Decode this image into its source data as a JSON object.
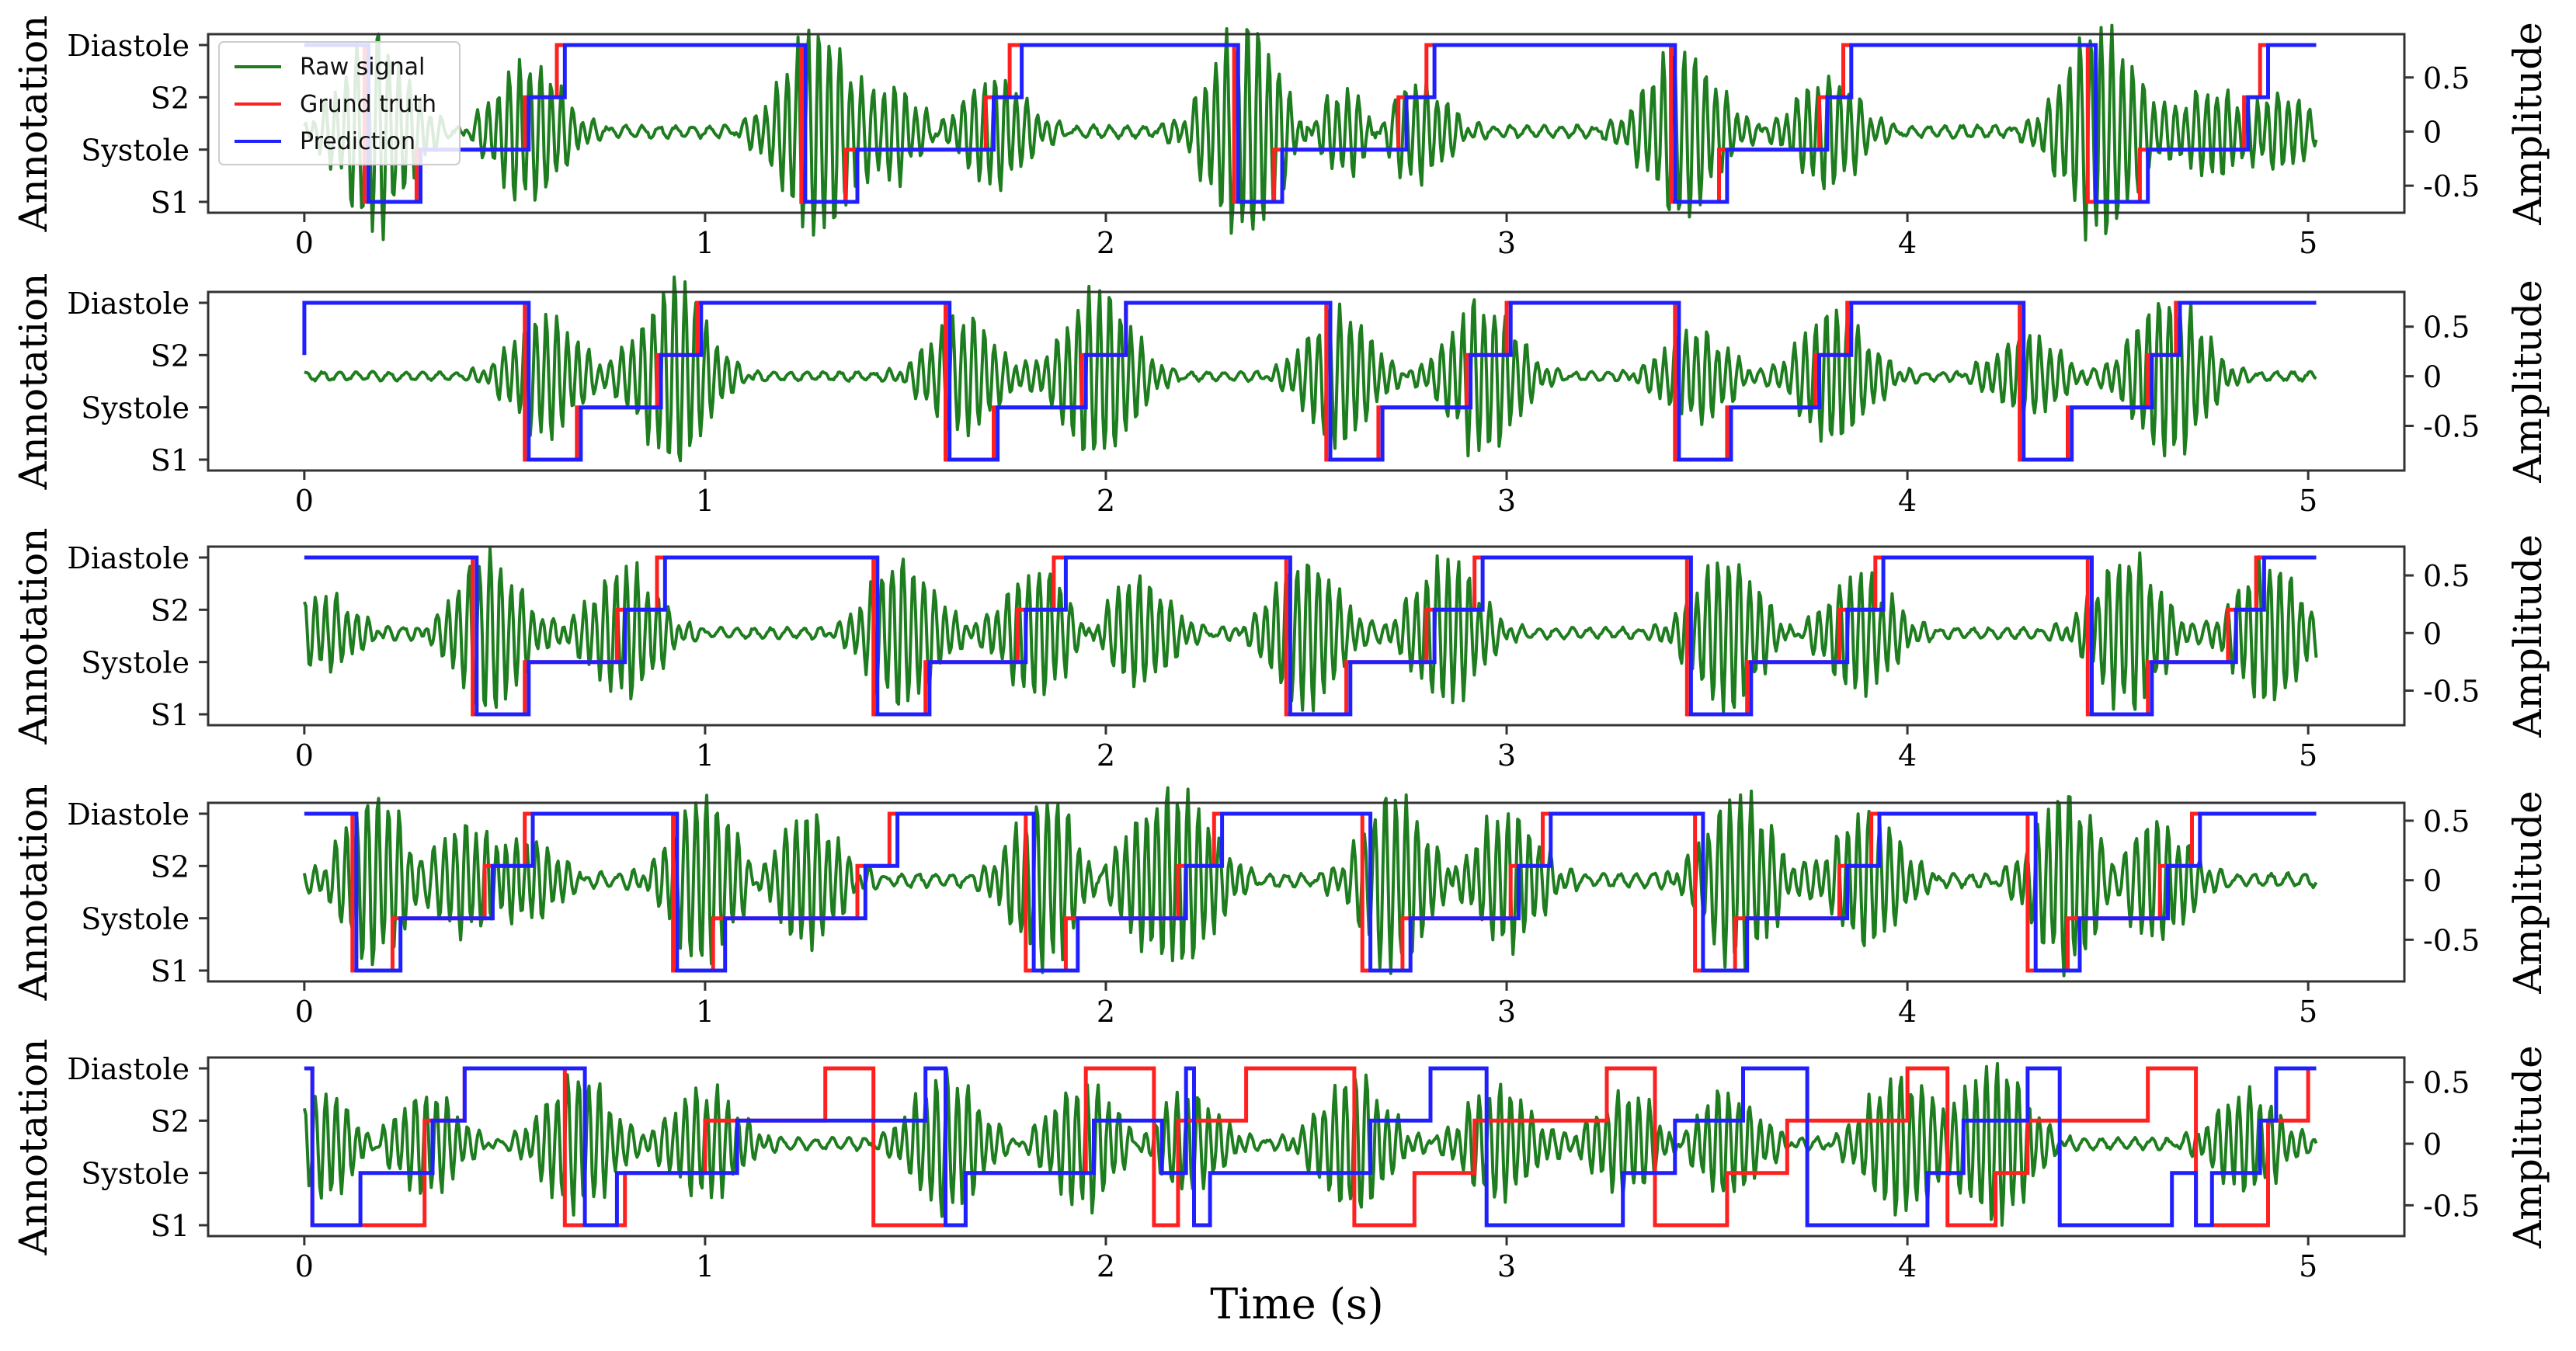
{
  "chart_data": {
    "type": "line",
    "title": "",
    "xlabel": "Time (s)",
    "ylabel_left": "Annotation",
    "ylabel_right": "Amplitude",
    "xlim": [
      -0.24,
      5.24
    ],
    "x_ticks": [
      0,
      1,
      2,
      3,
      4,
      5
    ],
    "x_tick_labels": [
      "0",
      "1",
      "2",
      "3",
      "4",
      "5"
    ],
    "annotation_states": [
      "S1",
      "Systole",
      "S2",
      "Diastole"
    ],
    "legend": {
      "placement": "top-left",
      "entries": [
        "Raw signal",
        "Grund truth",
        "Prediction"
      ]
    },
    "colors": {
      "raw_signal": "#1e7d1e",
      "ground_truth": "#ff2020",
      "prediction": "#2020ff",
      "axes": "#333333",
      "text": "#000000"
    },
    "panels": [
      {
        "amp_ylim": [
          -0.75,
          0.9
        ],
        "amp_ticks": [
          -0.5,
          0,
          0.5
        ],
        "amp_tick_labels": [
          "-0.5",
          "0",
          "0.5"
        ],
        "signal_noise": 0.05,
        "bursts": [
          [
            0.18,
            0.85,
            0.55
          ],
          [
            0.56,
            0.65,
            0.5
          ],
          [
            1.28,
            0.95,
            0.6
          ],
          [
            1.47,
            0.4,
            0.35
          ],
          [
            1.72,
            0.5,
            0.5
          ],
          [
            2.35,
            0.95,
            0.6
          ],
          [
            2.6,
            0.4,
            0.4
          ],
          [
            2.77,
            0.45,
            0.45
          ],
          [
            3.44,
            0.75,
            0.6
          ],
          [
            3.8,
            0.5,
            0.45
          ],
          [
            4.48,
            0.95,
            0.6
          ],
          [
            4.77,
            0.4,
            0.5
          ],
          [
            4.92,
            0.35,
            0.5
          ]
        ],
        "ground_truth": {
          "times": [
            0.0,
            0.15,
            0.28,
            0.55,
            0.63,
            1.24,
            1.35,
            1.7,
            1.76,
            2.32,
            2.42,
            2.73,
            2.8,
            3.41,
            3.53,
            3.78,
            3.84,
            4.45,
            4.58,
            4.84,
            4.88,
            5.02
          ],
          "states": [
            3,
            0,
            1,
            2,
            3,
            0,
            1,
            2,
            3,
            0,
            1,
            2,
            3,
            0,
            1,
            2,
            3,
            0,
            1,
            2,
            3
          ]
        },
        "prediction": {
          "times": [
            0.0,
            0.16,
            0.29,
            0.56,
            0.65,
            1.25,
            1.38,
            1.72,
            1.79,
            2.33,
            2.44,
            2.75,
            2.82,
            3.42,
            3.55,
            3.8,
            3.86,
            4.47,
            4.6,
            4.85,
            4.9,
            5.02
          ],
          "states": [
            3,
            0,
            1,
            2,
            3,
            0,
            1,
            2,
            3,
            0,
            1,
            2,
            3,
            0,
            1,
            2,
            3,
            0,
            1,
            2,
            3
          ]
        }
      },
      {
        "amp_ylim": [
          -0.95,
          0.85
        ],
        "amp_ticks": [
          -0.5,
          0,
          0.5
        ],
        "amp_tick_labels": [
          "-0.5",
          "0",
          "0.5"
        ],
        "signal_noise": 0.04,
        "bursts": [
          [
            0.6,
            0.6,
            0.5
          ],
          [
            0.92,
            0.9,
            0.55
          ],
          [
            1.64,
            0.6,
            0.5
          ],
          [
            1.98,
            0.85,
            0.55
          ],
          [
            2.58,
            0.65,
            0.5
          ],
          [
            2.94,
            0.75,
            0.55
          ],
          [
            3.47,
            0.45,
            0.5
          ],
          [
            3.82,
            0.65,
            0.55
          ],
          [
            4.3,
            0.4,
            0.5
          ],
          [
            4.65,
            0.85,
            0.55
          ]
        ],
        "ground_truth": {
          "times": [
            0.0,
            0.55,
            0.68,
            0.88,
            0.98,
            1.6,
            1.72,
            1.94,
            2.05,
            2.55,
            2.68,
            2.9,
            3.0,
            3.42,
            3.55,
            3.77,
            3.85,
            4.28,
            4.4,
            4.6,
            4.67,
            5.02
          ],
          "states": [
            3,
            0,
            1,
            2,
            3,
            0,
            1,
            2,
            3,
            0,
            1,
            2,
            3,
            0,
            1,
            2,
            3,
            0,
            1,
            2,
            3
          ]
        },
        "prediction": {
          "times": [
            0.0,
            0.0,
            0.56,
            0.69,
            0.89,
            0.99,
            1.61,
            1.73,
            1.95,
            2.05,
            2.56,
            2.69,
            2.91,
            3.01,
            3.43,
            3.56,
            3.78,
            3.86,
            4.29,
            4.41,
            4.61,
            4.68,
            5.02
          ],
          "states": [
            2,
            3,
            0,
            1,
            2,
            3,
            0,
            1,
            2,
            3,
            0,
            1,
            2,
            3,
            0,
            1,
            2,
            3,
            0,
            1,
            2,
            3
          ]
        }
      },
      {
        "amp_ylim": [
          -0.8,
          0.75
        ],
        "amp_ticks": [
          -0.5,
          0,
          0.5
        ],
        "amp_tick_labels": [
          "-0.5",
          "0",
          "0.5"
        ],
        "signal_noise": 0.04,
        "bursts": [
          [
            0.05,
            0.3,
            0.5
          ],
          [
            0.46,
            0.65,
            0.5
          ],
          [
            0.8,
            0.55,
            0.5
          ],
          [
            1.49,
            0.65,
            0.5
          ],
          [
            1.83,
            0.55,
            0.5
          ],
          [
            2.08,
            0.45,
            0.5
          ],
          [
            2.5,
            0.65,
            0.5
          ],
          [
            2.85,
            0.6,
            0.5
          ],
          [
            3.55,
            0.65,
            0.5
          ],
          [
            3.88,
            0.5,
            0.5
          ],
          [
            4.55,
            0.65,
            0.5
          ],
          [
            4.9,
            0.6,
            0.5
          ]
        ],
        "ground_truth": {
          "times": [
            0.0,
            0.42,
            0.55,
            0.78,
            0.88,
            1.42,
            1.55,
            1.78,
            1.87,
            2.45,
            2.6,
            2.8,
            2.92,
            3.45,
            3.6,
            3.83,
            3.92,
            4.45,
            4.6,
            4.8,
            4.87,
            5.02
          ],
          "states": [
            3,
            0,
            1,
            2,
            3,
            0,
            1,
            2,
            3,
            0,
            1,
            2,
            3,
            0,
            1,
            2,
            3,
            0,
            1,
            2,
            3
          ]
        },
        "prediction": {
          "times": [
            0.0,
            0.43,
            0.56,
            0.8,
            0.9,
            1.43,
            1.56,
            1.8,
            1.9,
            2.46,
            2.61,
            2.82,
            2.94,
            3.46,
            3.61,
            3.85,
            3.94,
            4.46,
            4.61,
            4.82,
            4.89,
            5.02
          ],
          "states": [
            3,
            0,
            1,
            2,
            3,
            0,
            1,
            2,
            3,
            0,
            1,
            2,
            3,
            0,
            1,
            2,
            3,
            0,
            1,
            2,
            3
          ]
        }
      },
      {
        "amp_ylim": [
          -0.85,
          0.65
        ],
        "amp_ticks": [
          -0.5,
          0,
          0.5
        ],
        "amp_tick_labels": [
          "-0.5",
          "0",
          "0.5"
        ],
        "signal_noise": 0.05,
        "bursts": [
          [
            0.18,
            0.7,
            0.5
          ],
          [
            0.4,
            0.45,
            0.6
          ],
          [
            0.55,
            0.35,
            0.5
          ],
          [
            1.0,
            0.7,
            0.5
          ],
          [
            1.25,
            0.55,
            0.5
          ],
          [
            1.85,
            0.7,
            0.5
          ],
          [
            2.1,
            0.45,
            0.6
          ],
          [
            2.2,
            0.6,
            0.5
          ],
          [
            2.72,
            0.7,
            0.5
          ],
          [
            3.0,
            0.55,
            0.5
          ],
          [
            3.58,
            0.7,
            0.5
          ],
          [
            3.9,
            0.55,
            0.5
          ],
          [
            4.4,
            0.7,
            0.5
          ],
          [
            4.62,
            0.5,
            0.5
          ]
        ],
        "ground_truth": {
          "times": [
            0.0,
            0.12,
            0.22,
            0.45,
            0.55,
            0.92,
            1.02,
            1.38,
            1.46,
            1.8,
            1.9,
            2.18,
            2.27,
            2.64,
            2.74,
            3.01,
            3.09,
            3.47,
            3.57,
            3.83,
            3.91,
            4.3,
            4.4,
            4.63,
            4.71,
            5.02
          ],
          "states": [
            3,
            0,
            1,
            2,
            3,
            0,
            1,
            2,
            3,
            0,
            1,
            2,
            3,
            0,
            1,
            2,
            3,
            0,
            1,
            2,
            3,
            0,
            1,
            2,
            3
          ]
        },
        "prediction": {
          "times": [
            0.0,
            0.13,
            0.24,
            0.47,
            0.57,
            0.93,
            1.05,
            1.4,
            1.48,
            1.82,
            1.93,
            2.2,
            2.29,
            2.66,
            2.76,
            3.03,
            3.11,
            3.49,
            3.6,
            3.85,
            3.93,
            4.32,
            4.43,
            4.65,
            4.73,
            5.02
          ],
          "states": [
            3,
            0,
            1,
            2,
            3,
            0,
            1,
            2,
            3,
            0,
            1,
            2,
            3,
            0,
            1,
            2,
            3,
            0,
            1,
            2,
            3,
            0,
            1,
            2,
            3
          ]
        }
      },
      {
        "amp_ylim": [
          -0.75,
          0.7
        ],
        "amp_ticks": [
          -0.5,
          0,
          0.5
        ],
        "amp_tick_labels": [
          "-0.5",
          "0",
          "0.5"
        ],
        "signal_noise": 0.04,
        "bursts": [
          [
            0.05,
            0.4,
            0.5
          ],
          [
            0.3,
            0.4,
            0.5
          ],
          [
            0.68,
            0.55,
            0.5
          ],
          [
            1.0,
            0.45,
            0.5
          ],
          [
            1.6,
            0.55,
            0.5
          ],
          [
            1.95,
            0.5,
            0.5
          ],
          [
            2.2,
            0.4,
            0.5
          ],
          [
            2.62,
            0.55,
            0.5
          ],
          [
            2.98,
            0.45,
            0.5
          ],
          [
            3.3,
            0.4,
            0.5
          ],
          [
            3.55,
            0.4,
            0.5
          ],
          [
            3.98,
            0.55,
            0.5
          ],
          [
            4.22,
            0.65,
            0.5
          ],
          [
            4.85,
            0.4,
            0.5
          ]
        ],
        "ground_truth": {
          "times": [
            0.0,
            0.02,
            0.3,
            0.4,
            0.65,
            0.8,
            1.0,
            1.3,
            1.42,
            1.65,
            1.95,
            2.12,
            2.18,
            2.35,
            2.62,
            2.77,
            2.92,
            3.25,
            3.37,
            3.55,
            3.7,
            4.0,
            4.1,
            4.22,
            4.3,
            4.6,
            4.72,
            4.9,
            5.0,
            5.02
          ],
          "states": [
            3,
            0,
            2,
            3,
            0,
            1,
            2,
            3,
            0,
            1,
            3,
            0,
            2,
            3,
            0,
            1,
            2,
            3,
            0,
            1,
            2,
            3,
            0,
            1,
            2,
            3,
            0,
            2,
            3
          ]
        },
        "prediction": {
          "times": [
            0.0,
            0.02,
            0.14,
            0.32,
            0.4,
            0.7,
            0.78,
            1.08,
            1.55,
            1.6,
            1.65,
            1.97,
            2.14,
            2.2,
            2.22,
            2.26,
            2.66,
            2.81,
            2.95,
            3.29,
            3.42,
            3.59,
            3.75,
            4.05,
            4.14,
            4.3,
            4.38,
            4.66,
            4.72,
            4.76,
            4.88,
            4.92,
            5.02
          ],
          "states": [
            3,
            0,
            1,
            2,
            3,
            0,
            1,
            2,
            3,
            0,
            1,
            2,
            1,
            3,
            0,
            1,
            2,
            3,
            0,
            1,
            2,
            3,
            0,
            1,
            2,
            3,
            0,
            1,
            0,
            1,
            2,
            3
          ]
        }
      }
    ]
  }
}
